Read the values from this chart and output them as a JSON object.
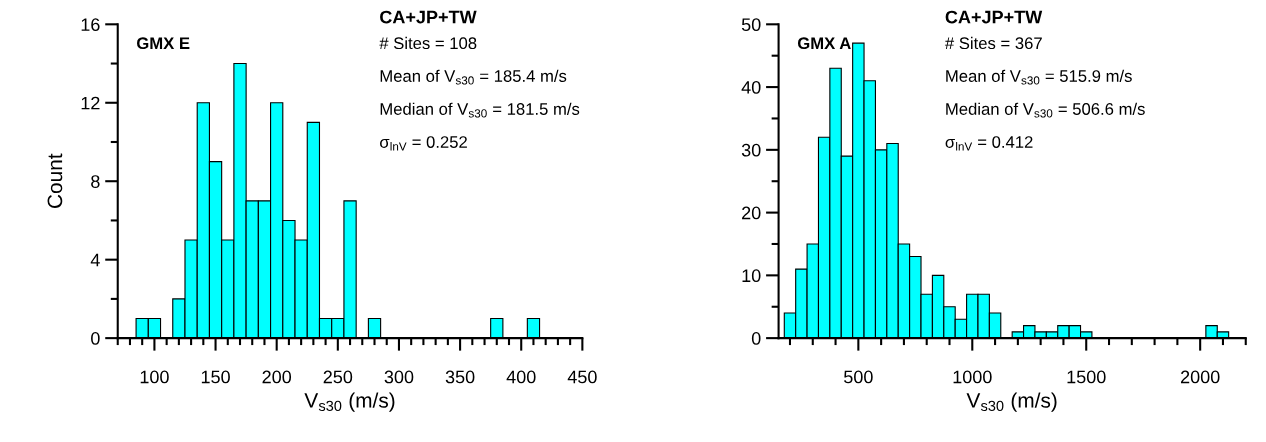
{
  "chart_data": [
    {
      "type": "histogram",
      "title": "GMX E",
      "xlabel": "V$_{s30}$ (m/s)",
      "ylabel": "Count",
      "color": "#00ffff",
      "bins": [
        85,
        95,
        105,
        115,
        125,
        135,
        145,
        155,
        165,
        175,
        185,
        195,
        205,
        215,
        225,
        235,
        245,
        255,
        265,
        275,
        285,
        295,
        305,
        315,
        325,
        335,
        345,
        355,
        365,
        375,
        385,
        395,
        405,
        415
      ],
      "values": [
        1,
        1,
        0,
        2,
        5,
        12,
        9,
        5,
        14,
        7,
        7,
        12,
        6,
        5,
        11,
        1,
        1,
        7,
        0,
        1,
        0,
        0,
        0,
        0,
        0,
        0,
        0,
        0,
        0,
        1,
        0,
        0,
        1
      ],
      "xlim": [
        70,
        450
      ],
      "xticks": [
        {
          "value": 70,
          "label": null
        },
        {
          "value": 80,
          "label": null
        },
        {
          "value": 90,
          "label": null
        },
        100,
        {
          "value": 110,
          "label": null
        },
        {
          "value": 120,
          "label": null
        },
        {
          "value": 130,
          "label": null
        },
        {
          "value": 140,
          "label": null
        },
        150,
        {
          "value": 160,
          "label": null
        },
        {
          "value": 170,
          "label": null
        },
        {
          "value": 180,
          "label": null
        },
        {
          "value": 190,
          "label": null
        },
        200,
        {
          "value": 210,
          "label": null
        },
        {
          "value": 220,
          "label": null
        },
        {
          "value": 230,
          "label": null
        },
        {
          "value": 240,
          "label": null
        },
        250,
        {
          "value": 260,
          "label": null
        },
        {
          "value": 270,
          "label": null
        },
        {
          "value": 280,
          "label": null
        },
        {
          "value": 290,
          "label": null
        },
        300,
        {
          "value": 310,
          "label": null
        },
        {
          "value": 320,
          "label": null
        },
        {
          "value": 330,
          "label": null
        },
        {
          "value": 340,
          "label": null
        },
        350,
        {
          "value": 360,
          "label": null
        },
        {
          "value": 370,
          "label": null
        },
        {
          "value": 380,
          "label": null
        },
        {
          "value": 390,
          "label": null
        },
        400,
        {
          "value": 410,
          "label": null
        },
        {
          "value": 420,
          "label": null
        },
        {
          "value": 430,
          "label": null
        },
        {
          "value": 440,
          "label": null
        },
        450
      ],
      "ylim": [
        0,
        16
      ],
      "yticks": [
        0,
        {
          "value": 2,
          "label": null
        },
        4,
        {
          "value": 6,
          "label": null
        },
        8,
        {
          "value": 10,
          "label": null
        },
        12,
        {
          "value": 14,
          "label": null
        },
        16
      ],
      "grid": false,
      "annotations": [
        "CA+JP+TW",
        "# Sites = 108",
        "Mean of V$_{s30}$ = 185.4 m/s",
        "Median of V$_{s30}$ = 181.5 m/s",
        "σ$_{lnV}$ = 0.252"
      ]
    },
    {
      "type": "histogram",
      "title": "GMX A",
      "xlabel": "V$_{s30}$ (m/s)",
      "color": "#00ffff",
      "bins": [
        175,
        225,
        275,
        325,
        375,
        425,
        475,
        525,
        575,
        625,
        675,
        725,
        775,
        825,
        875,
        925,
        975,
        1025,
        1075,
        1125,
        1175,
        1225,
        1275,
        1325,
        1375,
        1425,
        1475,
        1525,
        1575,
        1625,
        1675,
        1725,
        1775,
        1825,
        1875,
        1925,
        1975,
        2025,
        2075,
        2125
      ],
      "values": [
        4,
        11,
        15,
        32,
        43,
        29,
        47,
        41,
        30,
        31,
        15,
        13,
        7,
        10,
        5,
        3,
        7,
        7,
        4,
        0,
        1,
        2,
        1,
        1,
        2,
        2,
        1,
        0,
        0,
        0,
        0,
        0,
        0,
        0,
        0,
        0,
        0,
        2,
        1
      ],
      "xlim": [
        150,
        2200
      ],
      "xticks": [
        {
          "value": 200,
          "label": null
        },
        {
          "value": 300,
          "label": null
        },
        {
          "value": 400,
          "label": null
        },
        500,
        {
          "value": 600,
          "label": null
        },
        {
          "value": 700,
          "label": null
        },
        {
          "value": 800,
          "label": null
        },
        {
          "value": 900,
          "label": null
        },
        1000,
        {
          "value": 1100,
          "label": null
        },
        {
          "value": 1200,
          "label": null
        },
        {
          "value": 1300,
          "label": null
        },
        {
          "value": 1400,
          "label": null
        },
        1500,
        {
          "value": 1600,
          "label": null
        },
        {
          "value": 1700,
          "label": null
        },
        {
          "value": 1800,
          "label": null
        },
        {
          "value": 1900,
          "label": null
        },
        2000,
        {
          "value": 2100,
          "label": null
        },
        {
          "value": 2200,
          "label": null
        }
      ],
      "ylim": [
        0,
        50
      ],
      "yticks": [
        0,
        {
          "value": 5,
          "label": null
        },
        10,
        {
          "value": 15,
          "label": null
        },
        20,
        {
          "value": 25,
          "label": null
        },
        30,
        {
          "value": 35,
          "label": null
        },
        40,
        {
          "value": 45,
          "label": null
        },
        50
      ],
      "grid": false,
      "annotations": [
        "CA+JP+TW",
        "# Sites = 367",
        "Mean of V$_{s30}$ = 515.9 m/s",
        "Median of V$_{s30}$ = 506.6 m/s",
        "σ$_{lnV}$ = 0.412"
      ]
    }
  ]
}
